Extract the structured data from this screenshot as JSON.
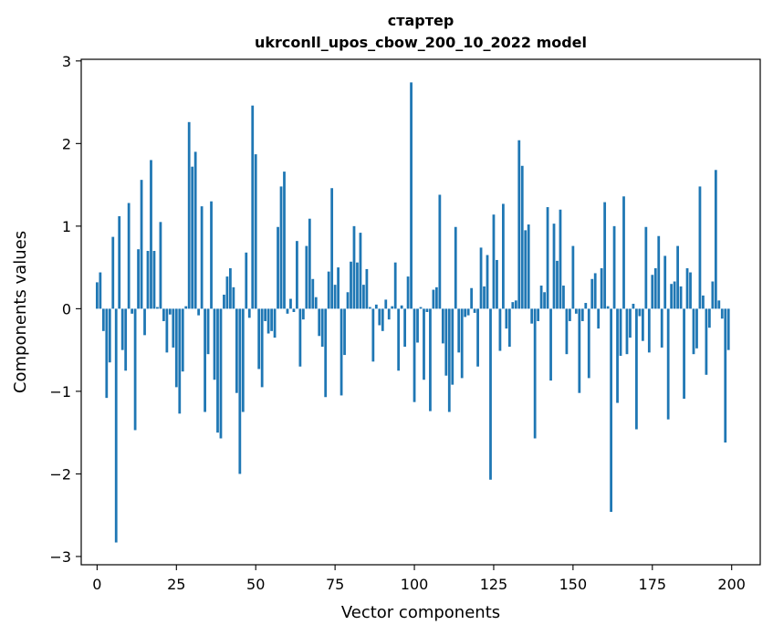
{
  "chart_data": {
    "type": "bar",
    "title": [
      "стартер",
      "ukrconll_upos_cbow_200_10_2022 model"
    ],
    "xlabel": "Vector components",
    "ylabel": "Components values",
    "xlim": [
      -5,
      209
    ],
    "ylim": [
      -3.1,
      3.02
    ],
    "xticks": [
      0,
      25,
      50,
      75,
      100,
      125,
      150,
      175,
      200
    ],
    "yticks": [
      -3,
      -2,
      -1,
      0,
      1,
      2,
      3
    ],
    "ytick_labels": [
      "−3",
      "−2",
      "−1",
      "0",
      "1",
      "2",
      "3"
    ],
    "bar_color": "#1f77b4",
    "grid": false,
    "x": [
      0,
      1,
      2,
      3,
      4,
      5,
      6,
      7,
      8,
      9,
      10,
      11,
      12,
      13,
      14,
      15,
      16,
      17,
      18,
      19,
      20,
      21,
      22,
      23,
      24,
      25,
      26,
      27,
      28,
      29,
      30,
      31,
      32,
      33,
      34,
      35,
      36,
      37,
      38,
      39,
      40,
      41,
      42,
      43,
      44,
      45,
      46,
      47,
      48,
      49,
      50,
      51,
      52,
      53,
      54,
      55,
      56,
      57,
      58,
      59,
      60,
      61,
      62,
      63,
      64,
      65,
      66,
      67,
      68,
      69,
      70,
      71,
      72,
      73,
      74,
      75,
      76,
      77,
      78,
      79,
      80,
      81,
      82,
      83,
      84,
      85,
      86,
      87,
      88,
      89,
      90,
      91,
      92,
      93,
      94,
      95,
      96,
      97,
      98,
      99,
      100,
      101,
      102,
      103,
      104,
      105,
      106,
      107,
      108,
      109,
      110,
      111,
      112,
      113,
      114,
      115,
      116,
      117,
      118,
      119,
      120,
      121,
      122,
      123,
      124,
      125,
      126,
      127,
      128,
      129,
      130,
      131,
      132,
      133,
      134,
      135,
      136,
      137,
      138,
      139,
      140,
      141,
      142,
      143,
      144,
      145,
      146,
      147,
      148,
      149,
      150,
      151,
      152,
      153,
      154,
      155,
      156,
      157,
      158,
      159,
      160,
      161,
      162,
      163,
      164,
      165,
      166,
      167,
      168,
      169,
      170,
      171,
      172,
      173,
      174,
      175,
      176,
      177,
      178,
      179,
      180,
      181,
      182,
      183,
      184,
      185,
      186,
      187,
      188,
      189,
      190,
      191,
      192,
      193,
      194,
      195,
      196,
      197,
      198,
      199
    ],
    "values": [
      0.32,
      0.44,
      -0.27,
      -1.08,
      -0.65,
      0.87,
      -2.83,
      1.12,
      -0.5,
      -0.75,
      1.28,
      -0.06,
      -1.47,
      0.72,
      1.56,
      -0.32,
      0.7,
      1.8,
      0.7,
      0.02,
      1.05,
      -0.15,
      -0.53,
      -0.07,
      -0.47,
      -0.95,
      -1.27,
      -0.76,
      0.03,
      2.26,
      1.72,
      1.9,
      -0.08,
      1.24,
      -1.25,
      -0.55,
      1.3,
      -0.86,
      -1.5,
      -1.57,
      0.17,
      0.39,
      0.49,
      0.26,
      -1.02,
      -2.0,
      -1.25,
      0.68,
      -0.11,
      2.46,
      1.87,
      -0.73,
      -0.95,
      -0.15,
      -0.3,
      -0.27,
      -0.35,
      0.99,
      1.48,
      1.66,
      -0.06,
      0.12,
      -0.04,
      0.82,
      -0.7,
      -0.13,
      0.76,
      1.09,
      0.36,
      0.14,
      -0.33,
      -0.46,
      -1.07,
      0.45,
      1.46,
      0.29,
      0.5,
      -1.05,
      -0.56,
      0.2,
      0.57,
      1.0,
      0.56,
      0.92,
      0.29,
      0.48,
      0.02,
      -0.64,
      0.05,
      -0.2,
      -0.27,
      0.11,
      -0.13,
      0.03,
      0.56,
      -0.75,
      0.04,
      -0.46,
      0.39,
      2.74,
      -1.13,
      -0.41,
      0.02,
      -0.86,
      -0.04,
      -1.24,
      0.23,
      0.26,
      1.38,
      -0.42,
      -0.81,
      -1.25,
      -0.92,
      0.99,
      -0.53,
      -0.84,
      -0.1,
      -0.08,
      0.25,
      -0.05,
      -0.7,
      0.74,
      0.27,
      0.65,
      -2.07,
      1.14,
      0.59,
      -0.51,
      1.27,
      -0.24,
      -0.46,
      0.08,
      0.1,
      2.04,
      1.73,
      0.95,
      1.02,
      -0.18,
      -1.57,
      -0.15,
      0.28,
      0.2,
      1.23,
      -0.87,
      1.03,
      0.58,
      1.2,
      0.28,
      -0.55,
      -0.15,
      0.76,
      -0.06,
      -1.02,
      -0.15,
      0.07,
      -0.84,
      0.36,
      0.43,
      -0.24,
      0.49,
      1.29,
      0.03,
      -2.46,
      1.0,
      -1.14,
      -0.57,
      1.36,
      -0.55,
      -0.35,
      0.06,
      -1.46,
      -0.09,
      -0.39,
      0.99,
      -0.53,
      0.41,
      0.49,
      0.88,
      -0.47,
      0.64,
      -1.34,
      0.3,
      0.33,
      0.76,
      0.27,
      -1.09,
      0.49,
      0.44,
      -0.55,
      -0.48,
      1.48,
      0.16,
      -0.8,
      -0.23,
      0.33,
      1.68,
      0.1,
      -0.12,
      -1.62,
      -0.5
    ]
  }
}
